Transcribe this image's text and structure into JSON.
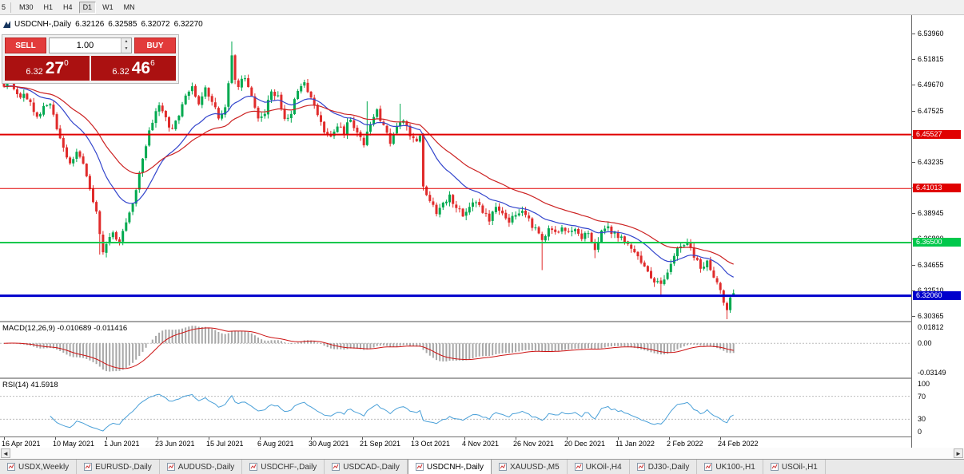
{
  "toolbar": {
    "periods": [
      {
        "label": "5",
        "active": false,
        "partial": true
      },
      {
        "label": "M30",
        "active": false
      },
      {
        "label": "H1",
        "active": false
      },
      {
        "label": "H4",
        "active": false
      },
      {
        "label": "D1",
        "active": true
      },
      {
        "label": "W1",
        "active": false
      },
      {
        "label": "MN",
        "active": false
      }
    ]
  },
  "chart": {
    "symbol_period": "USDCNH-,Daily",
    "ohlc": {
      "open": "6.32126",
      "high": "6.32585",
      "low": "6.32072",
      "close": "6.32270"
    }
  },
  "trade_panel": {
    "sell_label": "SELL",
    "buy_label": "BUY",
    "volume": "1.00",
    "bid": {
      "prefix": "6.32",
      "big": "27",
      "sup": "0"
    },
    "ask": {
      "prefix": "6.32",
      "big": "46",
      "sup": "6"
    },
    "colors": {
      "button": "#e23b3b",
      "price_bg": "#ab1111"
    }
  },
  "price_axis": {
    "labels": [
      "6.53960",
      "6.51815",
      "6.49670",
      "6.47525",
      "6.45380",
      "6.43235",
      "6.41090",
      "6.38945",
      "6.36800",
      "6.34655",
      "6.32510",
      "6.30365"
    ]
  },
  "levels": [
    {
      "label": "6.45527",
      "value": 6.45527,
      "color": "#e00000",
      "width": 2
    },
    {
      "label": "6.41013",
      "value": 6.41013,
      "color": "#e00000",
      "width": 1
    },
    {
      "label": "6.36500",
      "value": 6.365,
      "color": "#00c84b",
      "width": 2
    },
    {
      "label": "6.32060",
      "value": 6.3206,
      "color": "#0000cc",
      "width": 3
    }
  ],
  "macd_panel": {
    "title": "MACD(12,26,9)",
    "values": "-0.010689 -0.011416",
    "axis": {
      "top": "0.01812",
      "zero": "0.00",
      "bottom": "-0.03149"
    }
  },
  "rsi_panel": {
    "title": "RSI(14)",
    "value": "41.5918",
    "axis": [
      "100",
      "70",
      "30",
      "0"
    ],
    "guide_levels": [
      70,
      30
    ]
  },
  "time_axis": {
    "labels": [
      "16 Apr 2021",
      "10 May 2021",
      "1 Jun 2021",
      "23 Jun 2021",
      "15 Jul 2021",
      "6 Aug 2021",
      "30 Aug 2021",
      "21 Sep 2021",
      "13 Oct 2021",
      "4 Nov 2021",
      "26 Nov 2021",
      "20 Dec 2021",
      "11 Jan 2022",
      "2 Feb 2022",
      "24 Feb 2022"
    ]
  },
  "tabs": [
    {
      "label": "USDX,Weekly",
      "active": false
    },
    {
      "label": "EURUSD-,Daily",
      "active": false
    },
    {
      "label": "AUDUSD-,Daily",
      "active": false
    },
    {
      "label": "USDCHF-,Daily",
      "active": false
    },
    {
      "label": "USDCAD-,Daily",
      "active": false
    },
    {
      "label": "USDCNH-,Daily",
      "active": true
    },
    {
      "label": "XAUUSD-,M5",
      "active": false
    },
    {
      "label": "UKOil-,H4",
      "active": false
    },
    {
      "label": "DJ30-,Daily",
      "active": false
    },
    {
      "label": "UK100-,H1",
      "active": false
    },
    {
      "label": "USOil-,H1",
      "active": false
    }
  ],
  "icons": {
    "scroll_left": "◄",
    "scroll_right": "►",
    "spin_up": "▲",
    "spin_down": "▼"
  },
  "chart_data": {
    "type": "candlestick",
    "symbol": "USDCNH",
    "timeframe": "Daily",
    "bars": 222,
    "seed": 20220309,
    "last": {
      "open": 6.32126,
      "high": 6.32585,
      "low": 6.32072,
      "close": 6.3227
    },
    "close_anchors": [
      [
        0,
        6.494
      ],
      [
        2,
        6.499
      ],
      [
        4,
        6.49
      ],
      [
        6,
        6.487
      ],
      [
        8,
        6.482
      ],
      [
        10,
        6.471
      ],
      [
        12,
        6.478
      ],
      [
        14,
        6.481
      ],
      [
        16,
        6.462
      ],
      [
        18,
        6.443
      ],
      [
        20,
        6.433
      ],
      [
        22,
        6.441
      ],
      [
        24,
        6.431
      ],
      [
        26,
        6.411
      ],
      [
        28,
        6.39
      ],
      [
        29,
        6.372
      ],
      [
        30,
        6.359
      ],
      [
        31,
        6.363
      ],
      [
        33,
        6.373
      ],
      [
        35,
        6.367
      ],
      [
        37,
        6.381
      ],
      [
        39,
        6.399
      ],
      [
        41,
        6.422
      ],
      [
        43,
        6.447
      ],
      [
        45,
        6.466
      ],
      [
        47,
        6.479
      ],
      [
        49,
        6.468
      ],
      [
        51,
        6.459
      ],
      [
        53,
        6.473
      ],
      [
        55,
        6.489
      ],
      [
        57,
        6.496
      ],
      [
        59,
        6.479
      ],
      [
        61,
        6.493
      ],
      [
        63,
        6.481
      ],
      [
        65,
        6.471
      ],
      [
        67,
        6.477
      ],
      [
        69,
        6.523
      ],
      [
        70,
        6.5
      ],
      [
        71,
        6.497
      ],
      [
        73,
        6.504
      ],
      [
        75,
        6.489
      ],
      [
        77,
        6.471
      ],
      [
        79,
        6.474
      ],
      [
        81,
        6.49
      ],
      [
        83,
        6.486
      ],
      [
        85,
        6.468
      ],
      [
        87,
        6.472
      ],
      [
        89,
        6.494
      ],
      [
        91,
        6.499
      ],
      [
        93,
        6.487
      ],
      [
        95,
        6.47
      ],
      [
        97,
        6.459
      ],
      [
        99,
        6.452
      ],
      [
        101,
        6.462
      ],
      [
        103,
        6.457
      ],
      [
        105,
        6.469
      ],
      [
        107,
        6.457
      ],
      [
        109,
        6.447
      ],
      [
        111,
        6.464
      ],
      [
        113,
        6.477
      ],
      [
        115,
        6.461
      ],
      [
        117,
        6.45
      ],
      [
        119,
        6.46
      ],
      [
        121,
        6.468
      ],
      [
        123,
        6.452
      ],
      [
        125,
        6.449
      ],
      [
        126,
        6.452
      ],
      [
        127,
        6.413
      ],
      [
        129,
        6.399
      ],
      [
        131,
        6.389
      ],
      [
        133,
        6.397
      ],
      [
        135,
        6.403
      ],
      [
        137,
        6.392
      ],
      [
        139,
        6.389
      ],
      [
        141,
        6.396
      ],
      [
        143,
        6.399
      ],
      [
        145,
        6.39
      ],
      [
        147,
        6.385
      ],
      [
        149,
        6.393
      ],
      [
        151,
        6.387
      ],
      [
        153,
        6.381
      ],
      [
        155,
        6.389
      ],
      [
        157,
        6.393
      ],
      [
        159,
        6.383
      ],
      [
        161,
        6.376
      ],
      [
        163,
        6.366
      ],
      [
        165,
        6.379
      ],
      [
        167,
        6.373
      ],
      [
        169,
        6.379
      ],
      [
        171,
        6.373
      ],
      [
        173,
        6.376
      ],
      [
        175,
        6.369
      ],
      [
        177,
        6.373
      ],
      [
        179,
        6.359
      ],
      [
        181,
        6.373
      ],
      [
        183,
        6.377
      ],
      [
        185,
        6.372
      ],
      [
        187,
        6.368
      ],
      [
        189,
        6.363
      ],
      [
        191,
        6.356
      ],
      [
        193,
        6.35
      ],
      [
        195,
        6.341
      ],
      [
        197,
        6.332
      ],
      [
        199,
        6.329
      ],
      [
        201,
        6.342
      ],
      [
        203,
        6.355
      ],
      [
        205,
        6.362
      ],
      [
        207,
        6.364
      ],
      [
        209,
        6.353
      ],
      [
        211,
        6.344
      ],
      [
        213,
        6.349
      ],
      [
        215,
        6.336
      ],
      [
        217,
        6.324
      ],
      [
        218,
        6.315
      ],
      [
        219,
        6.309
      ],
      [
        220,
        6.318
      ],
      [
        221,
        6.3227
      ]
    ],
    "forced_wicks": [
      [
        29,
        "l",
        6.355
      ],
      [
        69,
        "h",
        6.533
      ],
      [
        110,
        "h",
        6.483
      ],
      [
        120,
        "h",
        6.481
      ],
      [
        163,
        "l",
        6.342
      ],
      [
        179,
        "l",
        6.352
      ],
      [
        199,
        "l",
        6.321
      ],
      [
        219,
        "l",
        6.301
      ]
    ],
    "indicators": {
      "ma_fast": {
        "period": 20,
        "method": "ema"
      },
      "ma_slow": {
        "period": 40,
        "method": "ema"
      },
      "macd": [
        12,
        26,
        9
      ],
      "rsi_period": 14
    },
    "colors": {
      "up": "#00a94f",
      "down": "#e02b2b",
      "ma_fast": "#3345cc",
      "ma_slow": "#cc2222",
      "macd_hist": "#a8a8a8",
      "macd_signal": "#cc1111",
      "rsi": "#4aa0d8",
      "guide": "#bcbcbc"
    }
  }
}
